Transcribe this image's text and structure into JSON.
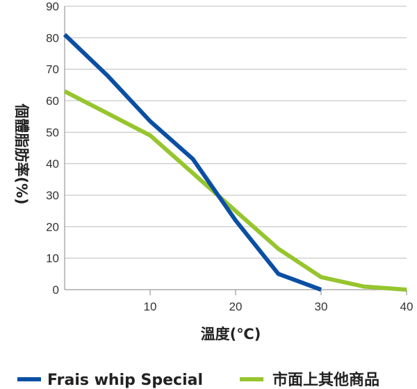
{
  "chart_data": {
    "type": "line",
    "xlabel": "溫度(℃)",
    "ylabel": "個體脂肪率(%)",
    "xlim": [
      0,
      40
    ],
    "ylim": [
      0,
      90
    ],
    "x_ticks": [
      10,
      20,
      30,
      40
    ],
    "y_ticks": [
      0,
      10,
      20,
      30,
      40,
      50,
      60,
      70,
      80,
      90
    ],
    "grid": "horizontal",
    "legend_position": "bottom",
    "series": [
      {
        "name": "Frais whip Special",
        "color": "#0a4fa3",
        "x": [
          0,
          5,
          10,
          15,
          20,
          25,
          30
        ],
        "y": [
          81,
          68,
          53.5,
          41.5,
          22,
          5,
          0
        ]
      },
      {
        "name": "市面上其他商品",
        "color": "#96c52e",
        "x": [
          0,
          5,
          10,
          15,
          20,
          25,
          30,
          35,
          40
        ],
        "y": [
          63,
          56,
          49,
          37,
          25,
          13,
          4,
          1,
          0
        ]
      }
    ]
  }
}
